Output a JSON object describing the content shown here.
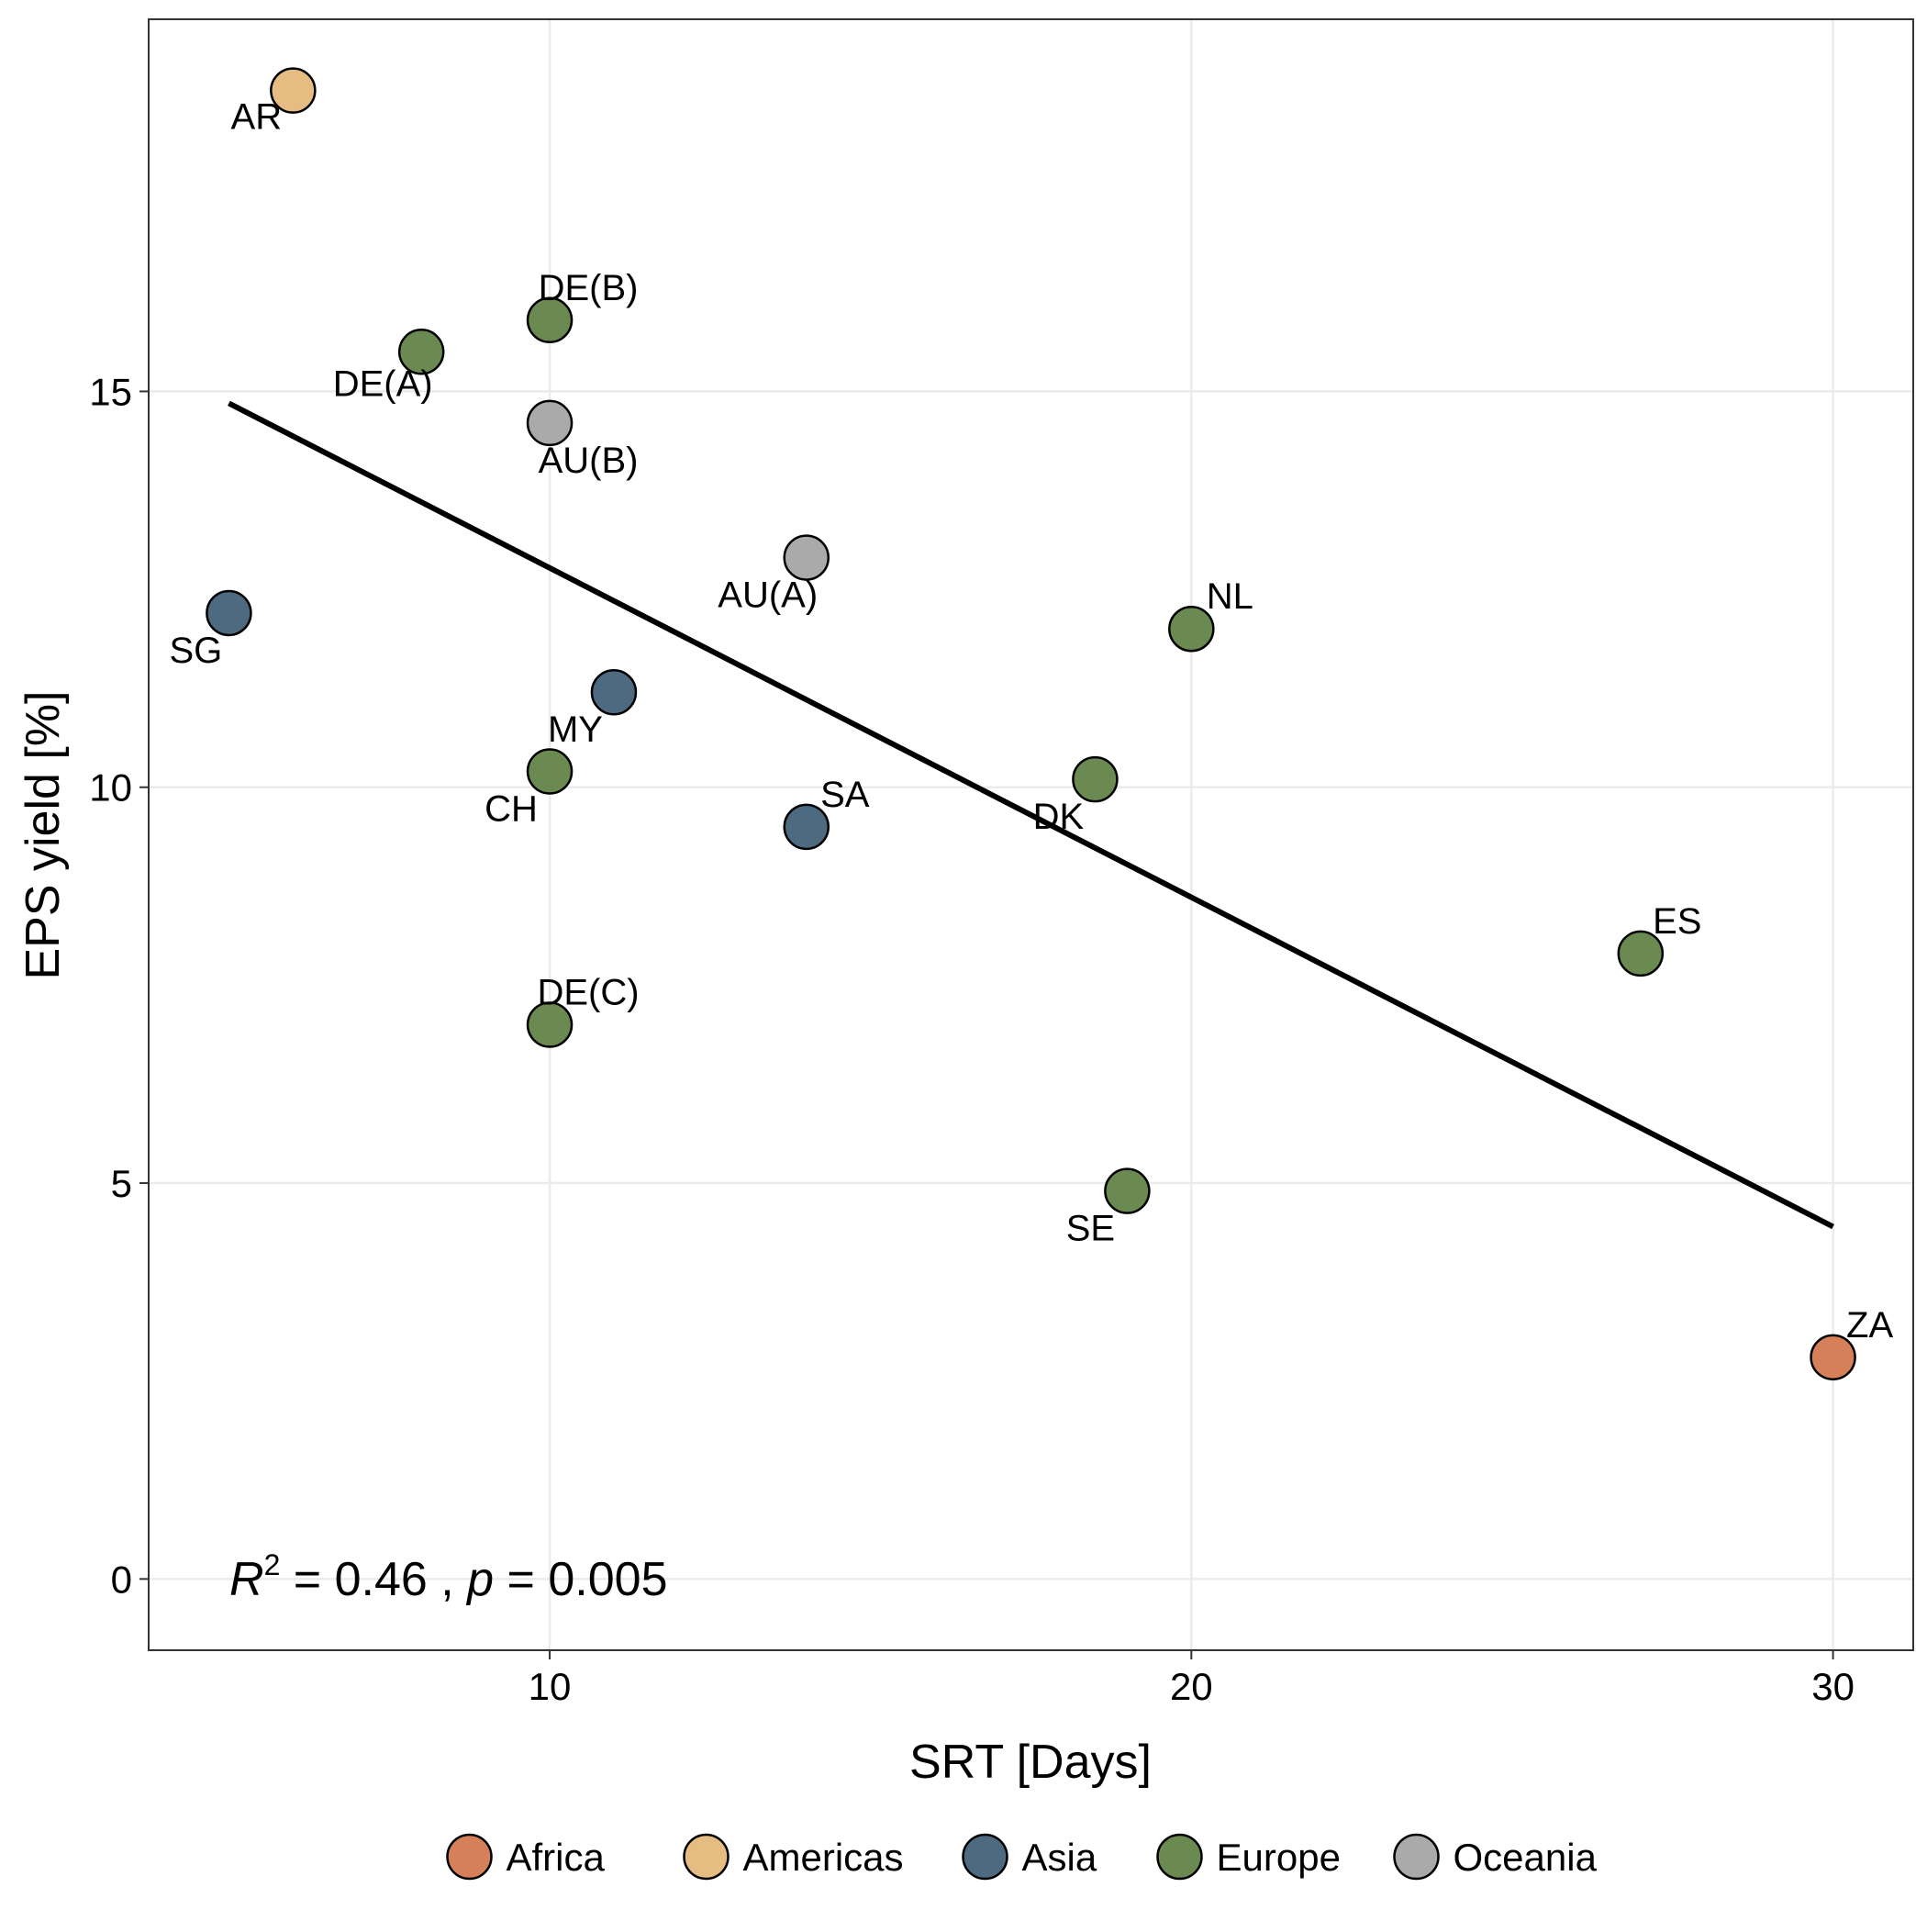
{
  "chart_data": {
    "type": "scatter",
    "title": "",
    "xlabel": "SRT [Days]",
    "ylabel": "EPS yield [%]",
    "xlim": [
      3.75,
      31.25
    ],
    "ylim": [
      -0.9,
      19.7
    ],
    "x_ticks": [
      10,
      20,
      30
    ],
    "y_ticks": [
      0,
      5,
      10,
      15
    ],
    "grid": true,
    "legend_position": "bottom",
    "colors": {
      "Africa": "#D6805A",
      "Americas": "#E5BD82",
      "Asia": "#4E6A80",
      "Europe": "#6B8A52",
      "Oceania": "#AAAAAA"
    },
    "series": [
      {
        "name": "Africa",
        "points": [
          {
            "label": "ZA",
            "x": 30,
            "y": 2.8
          }
        ]
      },
      {
        "name": "Americas",
        "points": [
          {
            "label": "AR",
            "x": 6,
            "y": 18.8
          }
        ]
      },
      {
        "name": "Asia",
        "points": [
          {
            "label": "SG",
            "x": 5,
            "y": 12.2
          },
          {
            "label": "MY",
            "x": 11,
            "y": 11.2
          },
          {
            "label": "SA",
            "x": 14,
            "y": 9.5
          }
        ]
      },
      {
        "name": "Europe",
        "points": [
          {
            "label": "DE(A)",
            "x": 8,
            "y": 15.5
          },
          {
            "label": "DE(B)",
            "x": 10,
            "y": 15.9
          },
          {
            "label": "CH",
            "x": 10,
            "y": 10.2
          },
          {
            "label": "DE(C)",
            "x": 10,
            "y": 7.0
          },
          {
            "label": "DK",
            "x": 18.5,
            "y": 10.1
          },
          {
            "label": "SE",
            "x": 19,
            "y": 4.9
          },
          {
            "label": "NL",
            "x": 20,
            "y": 12.0
          },
          {
            "label": "ES",
            "x": 27,
            "y": 7.9
          }
        ]
      },
      {
        "name": "Oceania",
        "points": [
          {
            "label": "AU(B)",
            "x": 10,
            "y": 14.6
          },
          {
            "label": "AU(A)",
            "x": 14,
            "y": 12.9
          }
        ]
      }
    ],
    "trendline": {
      "x": [
        5,
        30
      ],
      "y": [
        14.85,
        4.45
      ]
    },
    "annotation": {
      "r2_symbol": "R",
      "r2_superscript": "2",
      "r2_value": " = 0.46 , ",
      "p_symbol": "p",
      "p_value": " = 0.005"
    }
  }
}
